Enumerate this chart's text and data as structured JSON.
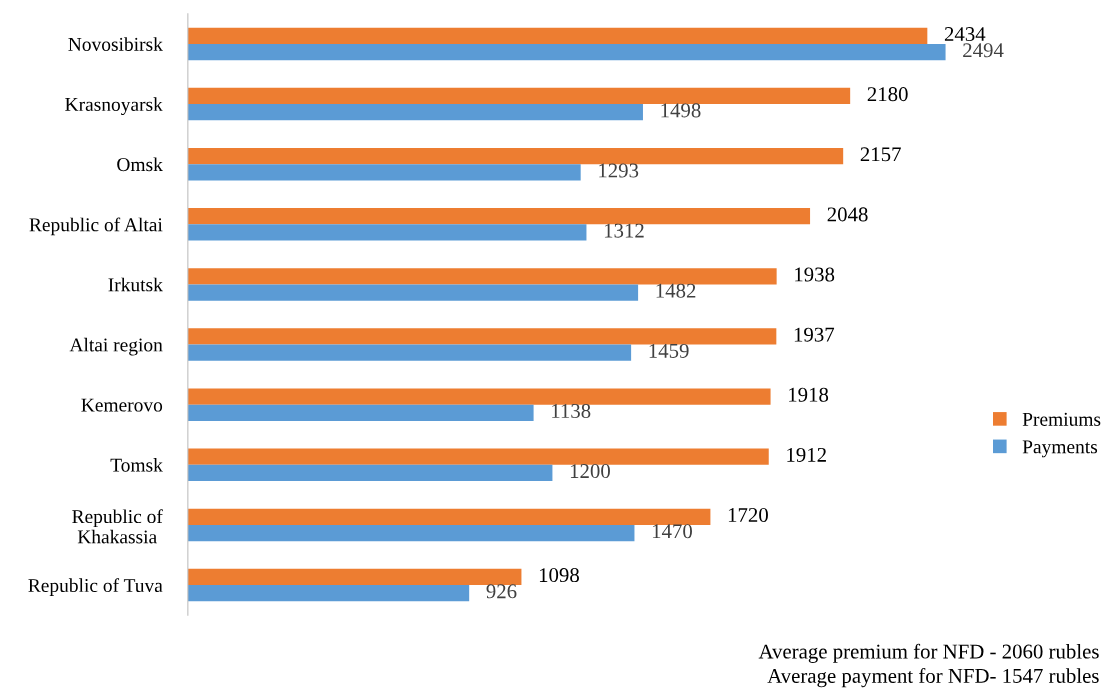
{
  "chart_data": {
    "type": "bar",
    "orientation": "horizontal",
    "categories": [
      "Novosibirsk",
      "Krasnoyarsk",
      "Omsk",
      "Republic of Altai",
      "Irkutsk",
      "Altai region",
      "Kemerovo",
      "Tomsk",
      "Republic of\nKhakassia",
      "Republic of Tuva"
    ],
    "series": [
      {
        "name": "Premiums",
        "color": "#ed7d31",
        "values": [
          2434,
          2180,
          2157,
          2048,
          1938,
          1937,
          1918,
          1912,
          1720,
          1098
        ]
      },
      {
        "name": "Payments",
        "color": "#5b9bd5",
        "values": [
          2494,
          1498,
          1293,
          1312,
          1482,
          1459,
          1138,
          1200,
          1470,
          926
        ]
      }
    ],
    "data_labels": true,
    "legend": "right",
    "grid": false,
    "annotations": [
      "Average premium for NFD - 2060 rubles",
      "Average payment for NFD- 1547 rubles"
    ]
  }
}
